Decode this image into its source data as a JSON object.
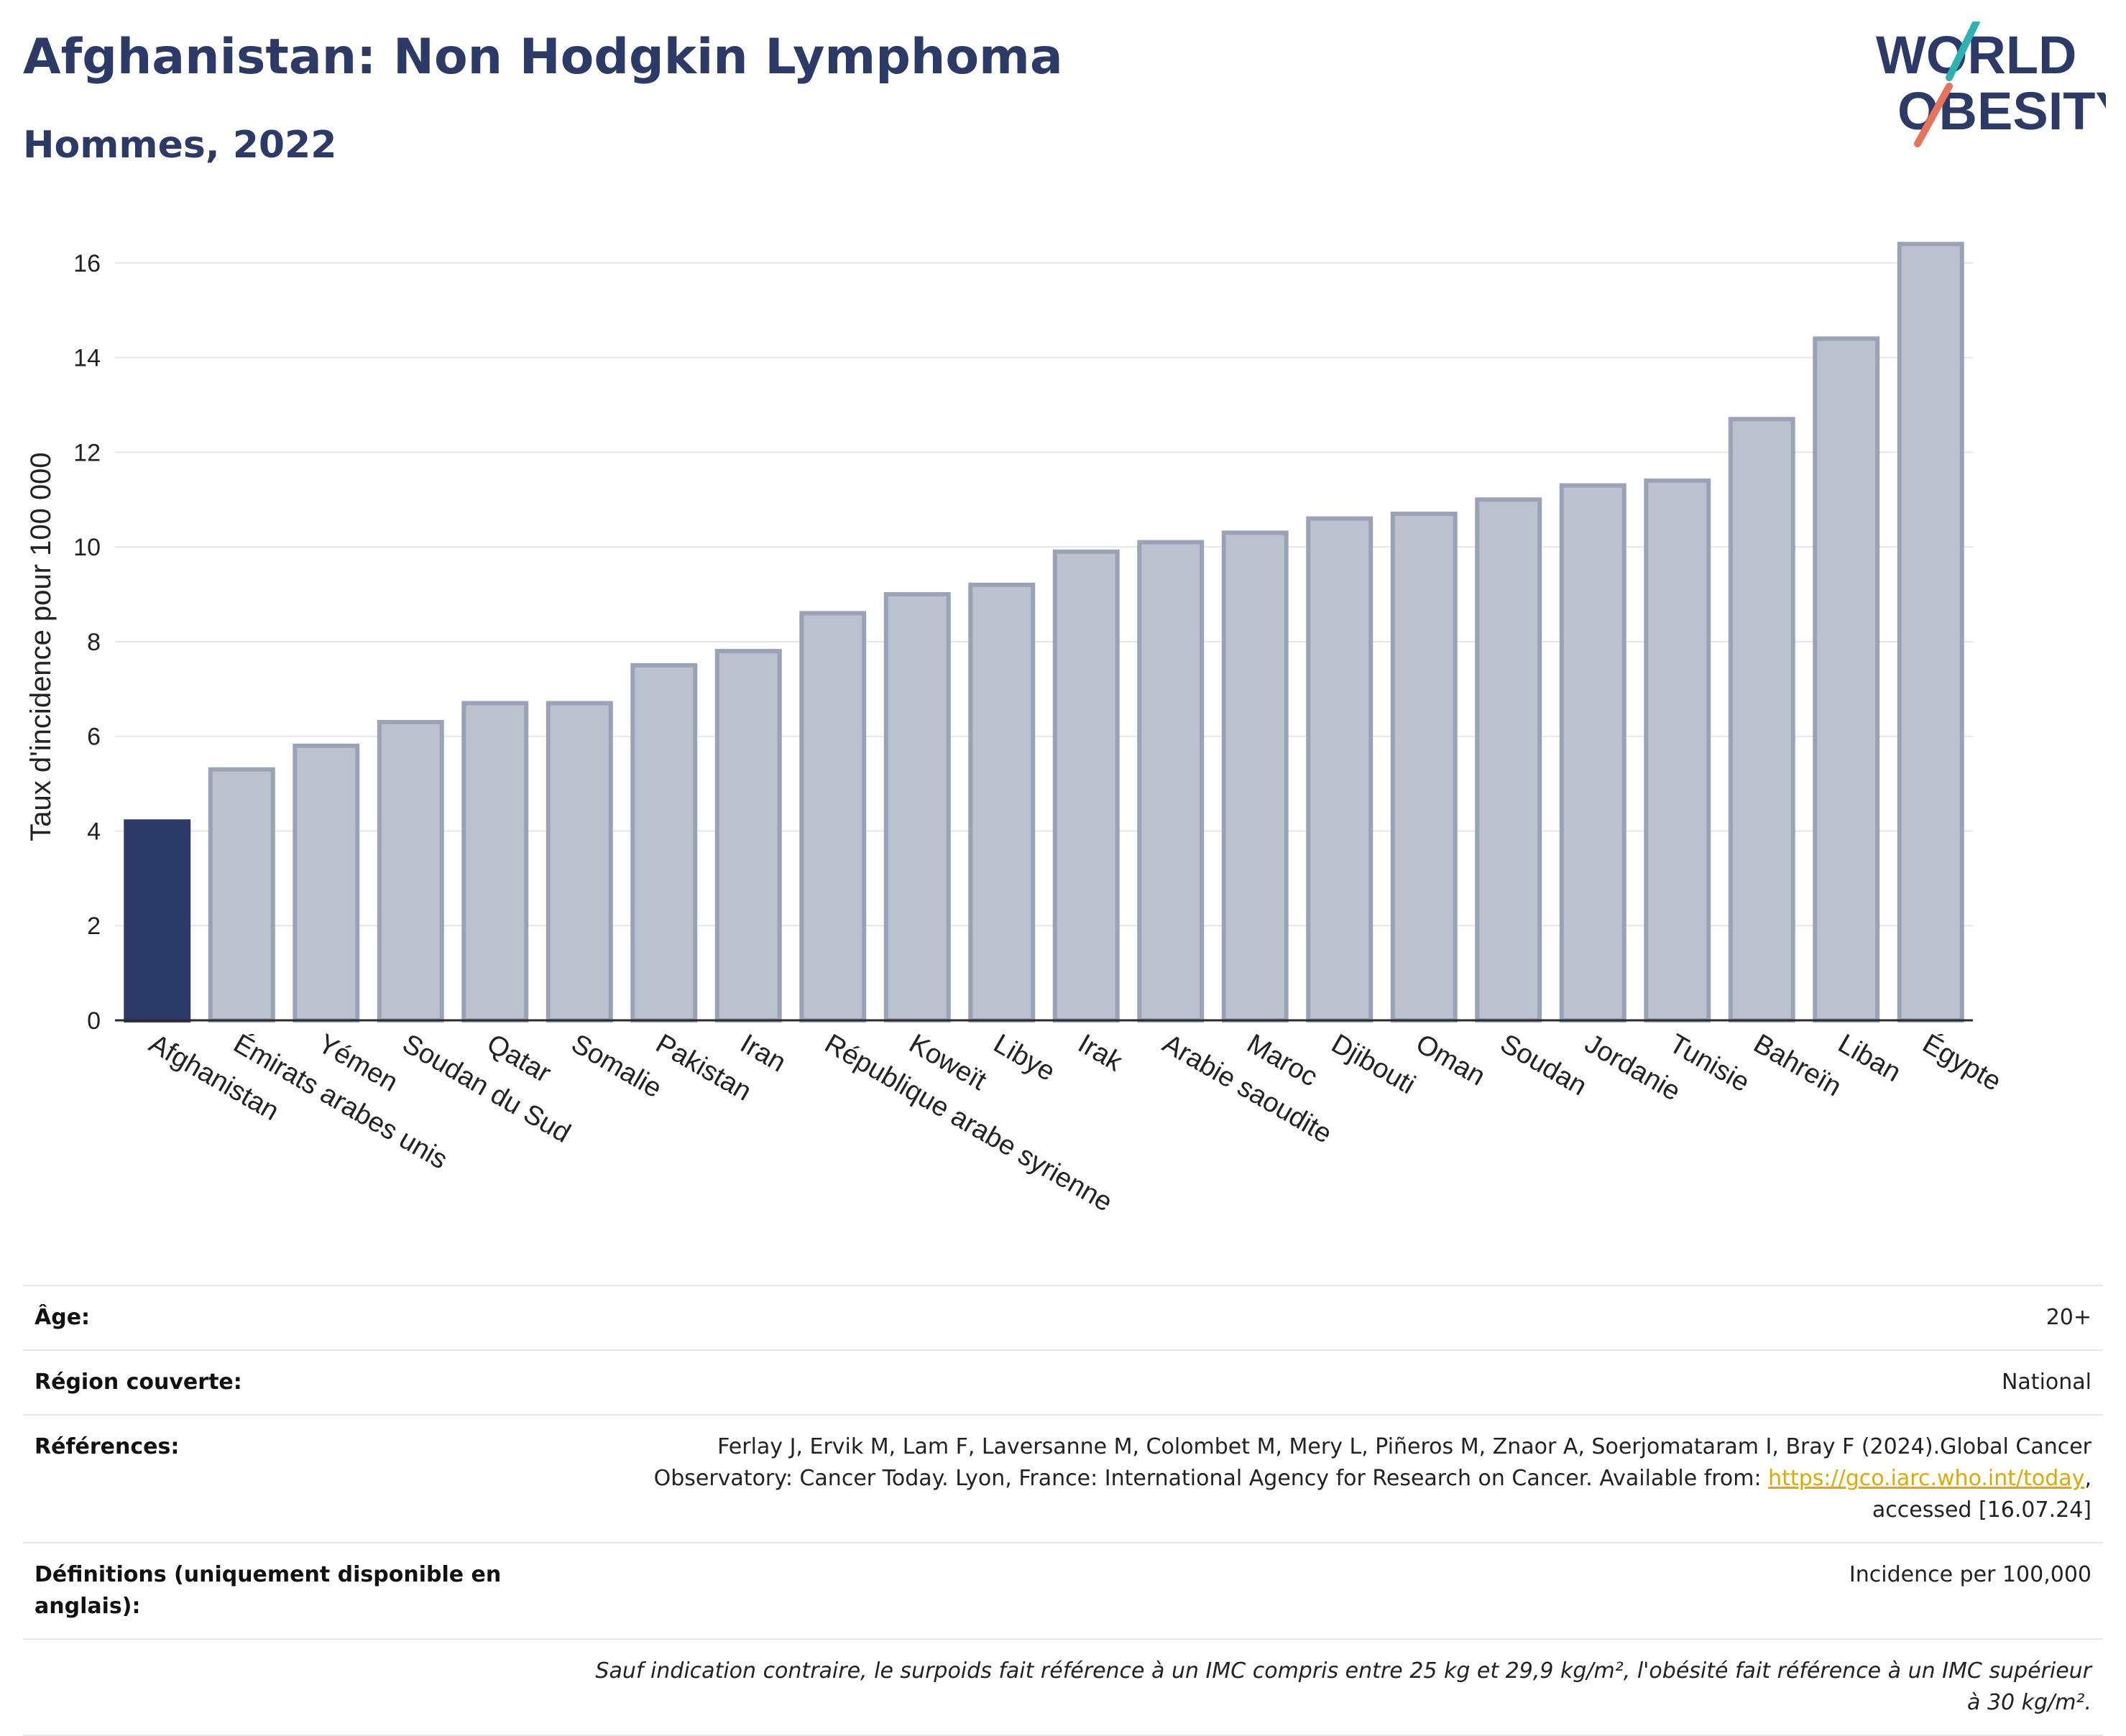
{
  "header": {
    "title": "Afghanistan: Non Hodgkin Lymphoma",
    "subtitle": "Hommes, 2022",
    "logo_text_1": "WORLD",
    "logo_text_2": "OBESITY"
  },
  "chart_data": {
    "type": "bar",
    "title": "Afghanistan: Non Hodgkin Lymphoma",
    "subtitle": "Hommes, 2022",
    "xlabel": "",
    "ylabel": "Taux d'incidence pour 100 000",
    "ylim": [
      0,
      17
    ],
    "yticks": [
      0,
      2,
      4,
      6,
      8,
      10,
      12,
      14,
      16
    ],
    "grid": true,
    "highlight": "Afghanistan",
    "colors": {
      "highlight": "#2b3a67",
      "bar": "#bcc1ce",
      "bar_border": "#9aa2b8",
      "axis": "#2b2b2b",
      "grid": "#e6e6e6"
    },
    "categories": [
      "Afghanistan",
      "Émirats arabes unis",
      "Yémen",
      "Soudan du Sud",
      "Qatar",
      "Somalie",
      "Pakistan",
      "Iran",
      "République arabe syrienne",
      "Koweït",
      "Libye",
      "Irak",
      "Arabie saoudite",
      "Maroc",
      "Djibouti",
      "Oman",
      "Soudan",
      "Jordanie",
      "Tunisie",
      "Bahreïn",
      "Liban",
      "Égypte"
    ],
    "values": [
      4.2,
      5.3,
      5.8,
      6.3,
      6.7,
      6.7,
      7.5,
      7.8,
      8.6,
      9.0,
      9.2,
      9.9,
      10.1,
      10.3,
      10.6,
      10.7,
      11.0,
      11.3,
      11.4,
      12.7,
      14.4,
      16.4
    ]
  },
  "meta": {
    "age_label": "Âge:",
    "age_value": "20+",
    "region_label": "Région couverte:",
    "region_value": "National",
    "ref_label": "Références:",
    "ref_text_1": "Ferlay J, Ervik M, Lam F, Laversanne M, Colombet M, Mery L, Piñeros M, Znaor A, Soerjomataram I, Bray F (2024).Global Cancer Observatory: Cancer Today. Lyon, France: International Agency for Research on Cancer. Available from: ",
    "ref_link": "https://gco.iarc.who.int/today",
    "ref_text_2": ", accessed [16.07.24]",
    "def_label": "Définitions (uniquement disponible en anglais):",
    "def_value": "Incidence per 100,000",
    "note": "Sauf indication contraire, le surpoids fait référence à un IMC compris entre 25 kg et 29,9 kg/m², l'obésité fait référence à un IMC supérieur à 30 kg/m²."
  }
}
